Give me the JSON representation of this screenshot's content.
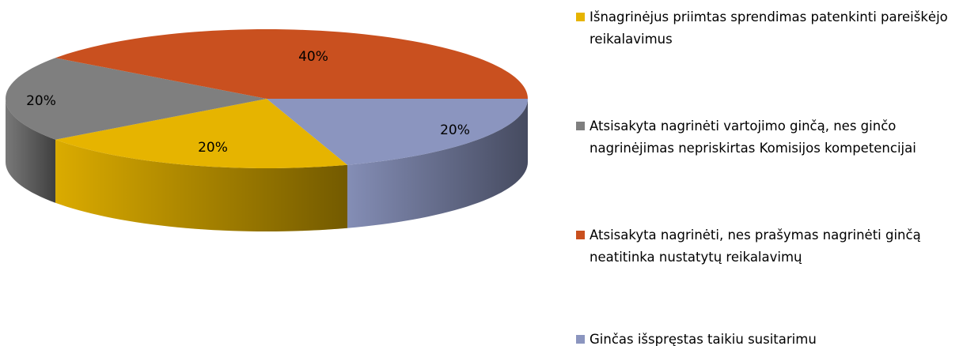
{
  "chart_data": {
    "type": "pie3d",
    "categories": [
      "Išnagrinėjus priimtas sprendimas patenkinti pareiškėjo reikalavimus",
      "Atsisakyta nagrinėti vartojimo ginčą, nes ginčo nagrinėjimas nepriskirtas Komisijos kompetencijai",
      "Atsisakyta nagrinėti, nes prašymas nagrinėti ginčą neatitinka nustatytų reikalavimų",
      "Ginčas išspręstas taikiu susitarimu"
    ],
    "values": [
      20,
      20,
      40,
      20
    ],
    "value_labels": [
      "20%",
      "20%",
      "40%",
      "20%"
    ],
    "colors": [
      "#e6b400",
      "#7f7f7f",
      "#c9501f",
      "#8b95bf"
    ],
    "legend": "right"
  }
}
